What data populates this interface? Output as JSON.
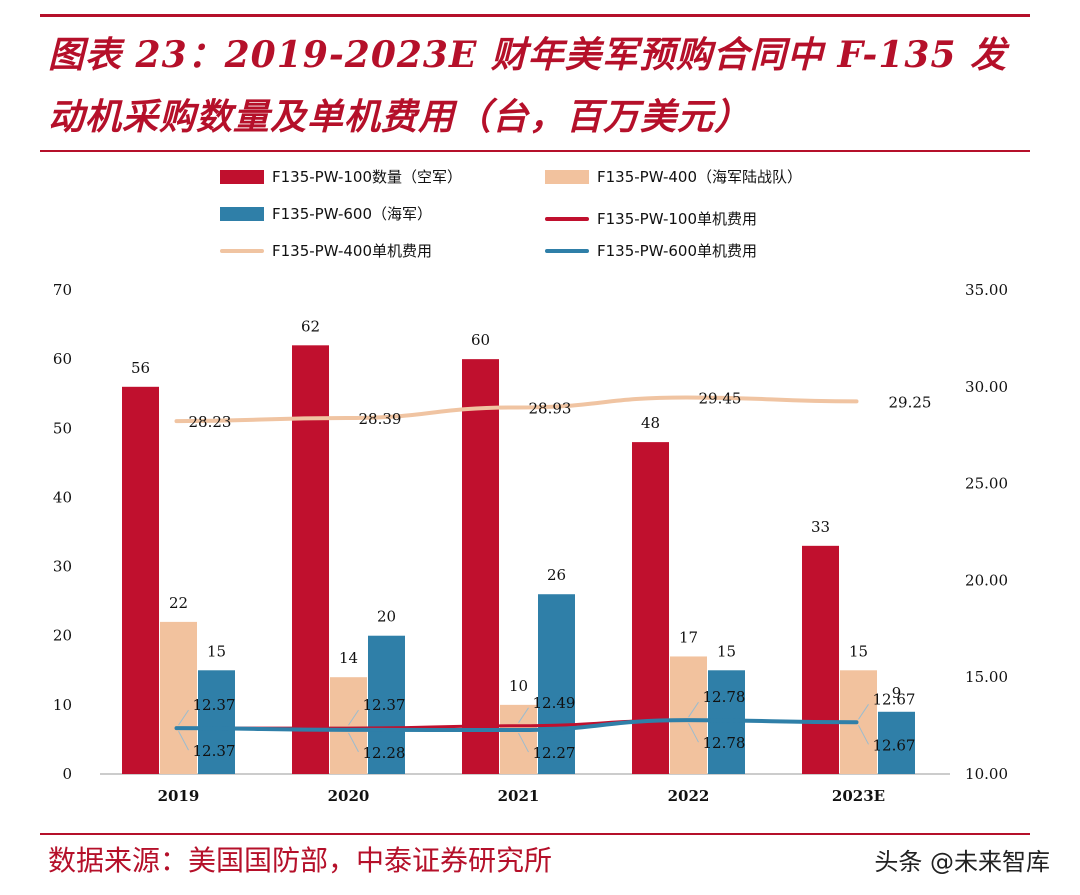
{
  "header": {
    "title": "图表 23：2019-2023E 财年美军预购合同中 F-135 发动机采购数量及单机费用（台，百万美元）"
  },
  "footer": {
    "source": "数据来源：美国国防部，中泰证券研究所",
    "watermark": "头条 @未来智库"
  },
  "colors": {
    "brand": "#b5102a",
    "pw100": "#c0102e",
    "pw400": "#f2c29e",
    "pw600": "#2f7fa8",
    "pw400_line": "#f0c4a2"
  },
  "chart_data": {
    "type": "bar",
    "categories": [
      "2019",
      "2020",
      "2021",
      "2022",
      "2023E"
    ],
    "legend": [
      {
        "name": "F135-PW-100数量（空军）",
        "kind": "bar",
        "color": "#c0102e"
      },
      {
        "name": "F135-PW-400（海军陆战队）",
        "kind": "bar",
        "color": "#f2c29e"
      },
      {
        "name": "F135-PW-600（海军）",
        "kind": "bar",
        "color": "#2f7fa8"
      },
      {
        "name": "F135-PW-100单机费用",
        "kind": "line",
        "color": "#c0102e"
      },
      {
        "name": "F135-PW-400单机费用",
        "kind": "line",
        "color": "#f0c4a2"
      },
      {
        "name": "F135-PW-600单机费用",
        "kind": "line",
        "color": "#2f7fa8"
      }
    ],
    "series": [
      {
        "name": "F135-PW-100数量（空军）",
        "type": "bar",
        "axis": "left",
        "values": [
          56,
          62,
          60,
          48,
          33
        ]
      },
      {
        "name": "F135-PW-400（海军陆战队）",
        "type": "bar",
        "axis": "left",
        "values": [
          22,
          14,
          10,
          17,
          15
        ]
      },
      {
        "name": "F135-PW-600（海军）",
        "type": "bar",
        "axis": "left",
        "values": [
          15,
          20,
          26,
          15,
          9
        ]
      },
      {
        "name": "F135-PW-100单机费用",
        "type": "line",
        "axis": "right",
        "values": [
          12.37,
          12.37,
          12.49,
          12.78,
          12.67
        ],
        "labels": [
          "12.37",
          "12.37",
          "12.49",
          "12.78",
          "12.67"
        ]
      },
      {
        "name": "F135-PW-400单机费用",
        "type": "line",
        "axis": "right",
        "values": [
          28.23,
          28.39,
          28.93,
          29.45,
          29.25
        ],
        "labels": [
          "28.23",
          "28.39",
          "28.93",
          "29.45",
          "29.25"
        ]
      },
      {
        "name": "F135-PW-600单机费用",
        "type": "line",
        "axis": "right",
        "values": [
          12.37,
          12.28,
          12.27,
          12.78,
          12.67
        ],
        "labels": [
          "12.37",
          "12.28",
          "12.27",
          "12.78",
          "12.67"
        ]
      }
    ],
    "y_left": {
      "min": 0,
      "max": 70,
      "ticks": [
        "0",
        "10",
        "20",
        "30",
        "40",
        "50",
        "60",
        "70"
      ]
    },
    "y_right": {
      "min": 10,
      "max": 35,
      "ticks": [
        "10.00",
        "15.00",
        "20.00",
        "25.00",
        "30.00",
        "35.00"
      ]
    },
    "grid": false,
    "legend_position": "top"
  }
}
